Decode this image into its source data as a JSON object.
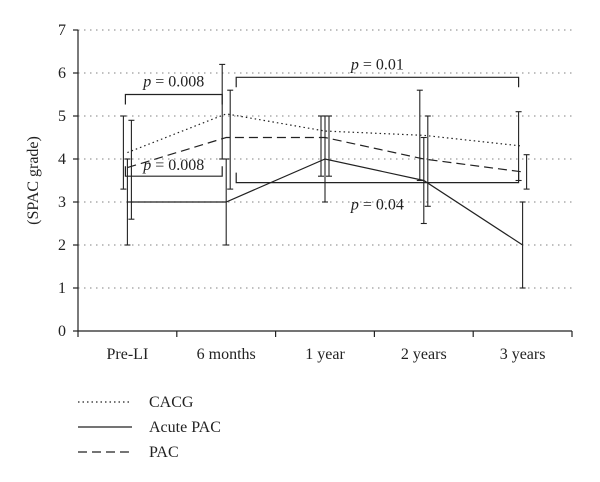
{
  "chart_data": {
    "type": "line",
    "title": "",
    "xlabel": "",
    "ylabel": "(SPAC grade)",
    "ylim": [
      0,
      7
    ],
    "yticks": [
      0,
      1,
      2,
      3,
      4,
      5,
      6,
      7
    ],
    "grid": true,
    "legend_position": "bottom-left",
    "categories": [
      "Pre-LI",
      "6 months",
      "1 year",
      "2 years",
      "3 years"
    ],
    "series": [
      {
        "name": "CACG",
        "style": "dotted",
        "values": [
          4.15,
          5.05,
          4.65,
          4.55,
          4.3
        ],
        "err_low": [
          3.3,
          4.0,
          3.6,
          3.5,
          3.5
        ],
        "err_high": [
          5.0,
          6.2,
          5.0,
          5.6,
          5.1
        ]
      },
      {
        "name": "Acute PAC",
        "style": "solid",
        "values": [
          3.0,
          3.0,
          4.0,
          3.5,
          2.0
        ],
        "err_low": [
          2.0,
          2.0,
          3.0,
          2.5,
          1.0
        ],
        "err_high": [
          4.0,
          4.0,
          5.0,
          4.5,
          3.0
        ]
      },
      {
        "name": "PAC",
        "style": "dashed",
        "values": [
          3.8,
          4.5,
          4.5,
          4.0,
          3.7
        ],
        "err_low": [
          2.6,
          3.3,
          3.6,
          2.9,
          3.3
        ],
        "err_high": [
          4.9,
          5.6,
          5.0,
          5.0,
          4.1
        ]
      }
    ],
    "annotations": [
      {
        "text": "p = 0.008",
        "p_label": "p",
        "p_value": "= 0.008",
        "from": "Pre-LI",
        "to": "6 months",
        "level": 5.5,
        "direction": "down"
      },
      {
        "text": "p = 0.008",
        "p_label": "p",
        "p_value": "= 0.008",
        "from": "Pre-LI",
        "to": "6 months",
        "level": 3.6,
        "direction": "up"
      },
      {
        "text": "p = 0.01",
        "p_label": "p",
        "p_value": "= 0.01",
        "from": "6 months",
        "to": "3 years",
        "level": 5.9,
        "direction": "down"
      },
      {
        "text": "p = 0.04",
        "p_label": "p",
        "p_value": "= 0.04",
        "from": "6 months",
        "to": "3 years",
        "level": 3.45,
        "direction": "up"
      }
    ]
  }
}
